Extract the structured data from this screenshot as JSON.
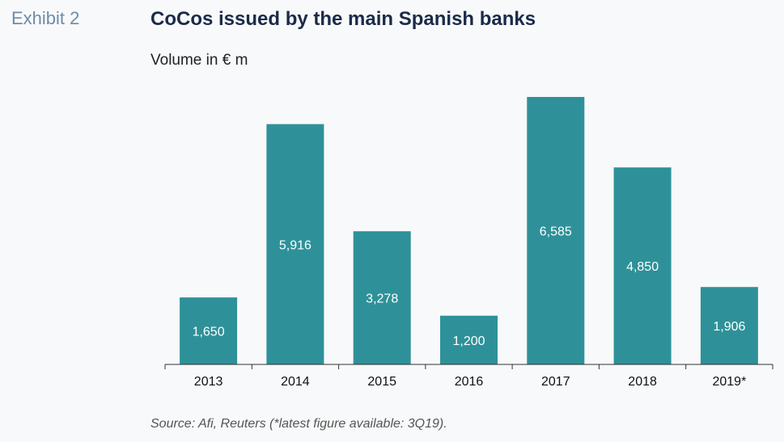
{
  "exhibit_label": "Exhibit 2",
  "source_note": "Source: Afi, Reuters (*latest figure available: 3Q19).",
  "colors": {
    "bar": "#2e9199",
    "axis": "#333333"
  },
  "chart_data": {
    "type": "bar",
    "title": "CoCos issued by the main Spanish banks",
    "subtitle": "Volume in € m",
    "categories": [
      "2013",
      "2014",
      "2015",
      "2016",
      "2017",
      "2018",
      "2019*"
    ],
    "values": [
      1650,
      5916,
      3278,
      1200,
      6585,
      4850,
      1906
    ],
    "data_labels": [
      "1,650",
      "5,916",
      "3,278",
      "1,200",
      "6,585",
      "4,850",
      "1,906"
    ],
    "xlabel": "",
    "ylabel": "",
    "ylim": [
      0,
      6585
    ],
    "grid": false,
    "legend": "none"
  }
}
